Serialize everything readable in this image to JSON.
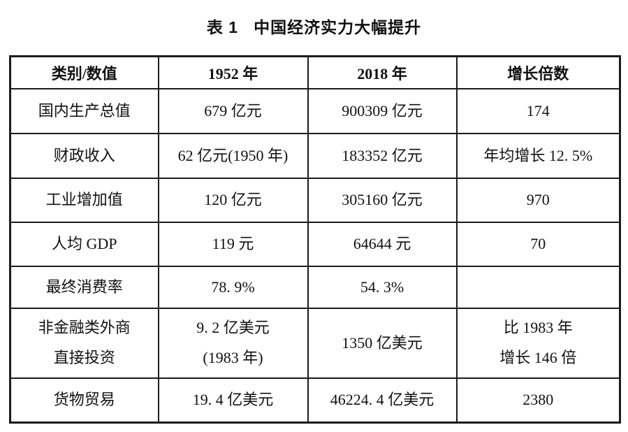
{
  "colors": {
    "background": "#ffffff",
    "text": "#111111",
    "border": "#1b1b1b"
  },
  "title": {
    "label": "表 1",
    "text": "中国经济实力大幅提升"
  },
  "table": {
    "column_headers": [
      "类别/数值",
      "1952 年",
      "2018 年",
      "增长倍数"
    ],
    "column_keys": [
      "category",
      "value-1952",
      "value-2018",
      "growth"
    ],
    "rows": [
      {
        "cells": [
          [
            "国内生产总值"
          ],
          [
            "679 亿元"
          ],
          [
            "900309 亿元"
          ],
          [
            "174"
          ]
        ]
      },
      {
        "cells": [
          [
            "财政收入"
          ],
          [
            "62 亿元(1950 年)"
          ],
          [
            "183352 亿元"
          ],
          [
            "年均增长 12. 5%"
          ]
        ]
      },
      {
        "cells": [
          [
            "工业增加值"
          ],
          [
            "120 亿元"
          ],
          [
            "305160 亿元"
          ],
          [
            "970"
          ]
        ]
      },
      {
        "cells": [
          [
            "人均 GDP"
          ],
          [
            "119 元"
          ],
          [
            "64644 元"
          ],
          [
            "70"
          ]
        ]
      },
      {
        "cells": [
          [
            "最终消费率"
          ],
          [
            "78. 9%"
          ],
          [
            "54. 3%"
          ],
          [
            ""
          ]
        ]
      },
      {
        "cells": [
          [
            "非金融类外商",
            "直接投资"
          ],
          [
            "9. 2 亿美元",
            "(1983 年)"
          ],
          [
            "1350 亿美元"
          ],
          [
            "比 1983 年",
            "增长 146 倍"
          ]
        ]
      },
      {
        "cells": [
          [
            "货物贸易"
          ],
          [
            "19. 4 亿美元"
          ],
          [
            "46224. 4 亿美元"
          ],
          [
            "2380"
          ]
        ]
      }
    ]
  }
}
